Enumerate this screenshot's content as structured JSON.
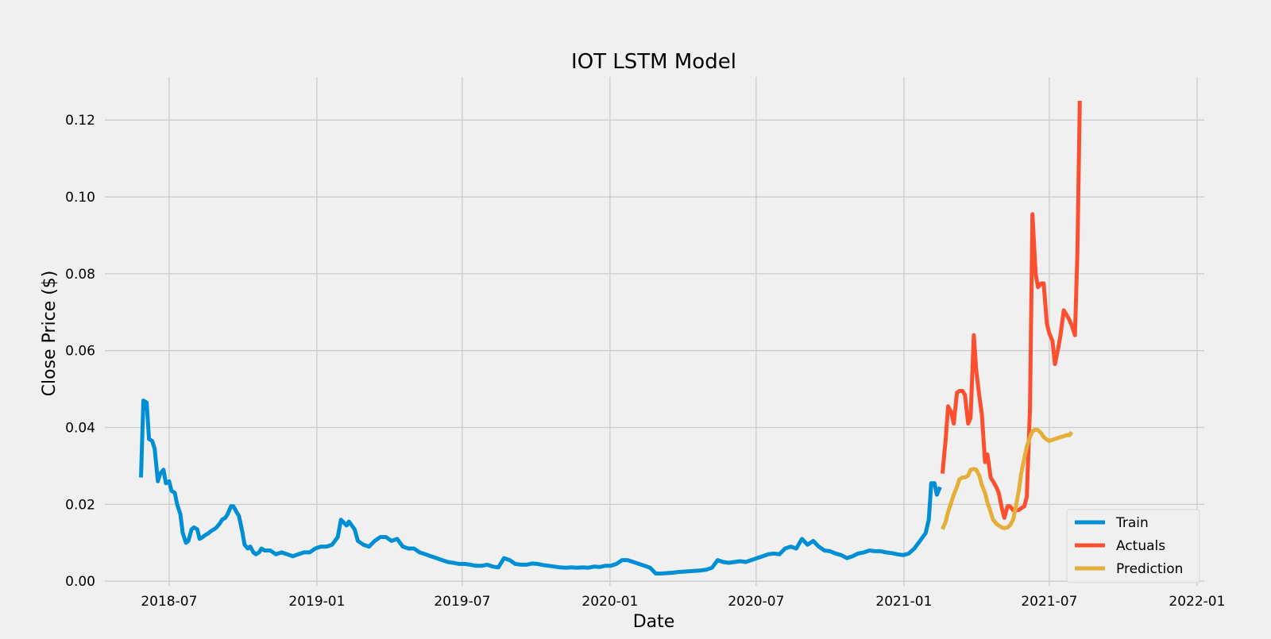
{
  "chart_data": {
    "type": "line",
    "title": "IOT LSTM Model",
    "xlabel": "Date",
    "ylabel": "Close Price ($)",
    "xlim": [
      "2018-04-12",
      "2022-01-10"
    ],
    "ylim": [
      -0.0012,
      0.1312
    ],
    "x_ticks": [
      "2018-07-01",
      "2019-01-01",
      "2019-07-01",
      "2020-01-01",
      "2020-07-01",
      "2021-01-01",
      "2021-07-01",
      "2022-01-01"
    ],
    "x_tick_labels": [
      "2018-07",
      "2019-01",
      "2019-07",
      "2020-01",
      "2020-07",
      "2021-01",
      "2021-07",
      "2022-01"
    ],
    "y_ticks": [
      0.0,
      0.02,
      0.04,
      0.06,
      0.08,
      0.1,
      0.12
    ],
    "y_tick_labels": [
      "0.00",
      "0.02",
      "0.04",
      "0.06",
      "0.08",
      "0.10",
      "0.12"
    ],
    "grid": true,
    "legend_position": "bottom-right",
    "series": [
      {
        "name": "Train",
        "color": "#008fd5",
        "points": [
          [
            "2018-05-27",
            0.027
          ],
          [
            "2018-05-30",
            0.047
          ],
          [
            "2018-06-03",
            0.0465
          ],
          [
            "2018-06-06",
            0.037
          ],
          [
            "2018-06-10",
            0.0365
          ],
          [
            "2018-06-13",
            0.0345
          ],
          [
            "2018-06-17",
            0.026
          ],
          [
            "2018-06-20",
            0.028
          ],
          [
            "2018-06-24",
            0.029
          ],
          [
            "2018-06-27",
            0.0255
          ],
          [
            "2018-07-01",
            0.026
          ],
          [
            "2018-07-04",
            0.0235
          ],
          [
            "2018-07-08",
            0.023
          ],
          [
            "2018-07-11",
            0.02
          ],
          [
            "2018-07-15",
            0.0175
          ],
          [
            "2018-07-18",
            0.0125
          ],
          [
            "2018-07-22",
            0.01
          ],
          [
            "2018-07-25",
            0.0105
          ],
          [
            "2018-07-29",
            0.0135
          ],
          [
            "2018-08-01",
            0.014
          ],
          [
            "2018-08-05",
            0.0135
          ],
          [
            "2018-08-08",
            0.011
          ],
          [
            "2018-08-12",
            0.0115
          ],
          [
            "2018-08-15",
            0.012
          ],
          [
            "2018-08-19",
            0.0125
          ],
          [
            "2018-08-22",
            0.013
          ],
          [
            "2018-08-26",
            0.0135
          ],
          [
            "2018-08-29",
            0.014
          ],
          [
            "2018-09-02",
            0.015
          ],
          [
            "2018-09-05",
            0.016
          ],
          [
            "2018-09-09",
            0.0165
          ],
          [
            "2018-09-12",
            0.0175
          ],
          [
            "2018-09-16",
            0.0195
          ],
          [
            "2018-09-19",
            0.0195
          ],
          [
            "2018-09-23",
            0.018
          ],
          [
            "2018-09-26",
            0.017
          ],
          [
            "2018-09-30",
            0.013
          ],
          [
            "2018-10-03",
            0.0095
          ],
          [
            "2018-10-07",
            0.0085
          ],
          [
            "2018-10-10",
            0.009
          ],
          [
            "2018-10-14",
            0.0075
          ],
          [
            "2018-10-17",
            0.007
          ],
          [
            "2018-10-21",
            0.0075
          ],
          [
            "2018-10-24",
            0.0085
          ],
          [
            "2018-10-28",
            0.008
          ],
          [
            "2018-11-04",
            0.008
          ],
          [
            "2018-11-11",
            0.007
          ],
          [
            "2018-11-18",
            0.0075
          ],
          [
            "2018-11-25",
            0.007
          ],
          [
            "2018-12-02",
            0.0065
          ],
          [
            "2018-12-09",
            0.007
          ],
          [
            "2018-12-16",
            0.0075
          ],
          [
            "2018-12-23",
            0.0075
          ],
          [
            "2018-12-30",
            0.0085
          ],
          [
            "2019-01-06",
            0.009
          ],
          [
            "2019-01-13",
            0.009
          ],
          [
            "2019-01-20",
            0.0095
          ],
          [
            "2019-01-27",
            0.0115
          ],
          [
            "2019-01-31",
            0.016
          ],
          [
            "2019-02-07",
            0.0145
          ],
          [
            "2019-02-10",
            0.0155
          ],
          [
            "2019-02-17",
            0.0135
          ],
          [
            "2019-02-21",
            0.0105
          ],
          [
            "2019-02-28",
            0.0095
          ],
          [
            "2019-03-07",
            0.009
          ],
          [
            "2019-03-14",
            0.0105
          ],
          [
            "2019-03-21",
            0.0115
          ],
          [
            "2019-03-28",
            0.0115
          ],
          [
            "2019-04-04",
            0.0105
          ],
          [
            "2019-04-11",
            0.011
          ],
          [
            "2019-04-18",
            0.009
          ],
          [
            "2019-04-25",
            0.0085
          ],
          [
            "2019-05-02",
            0.0085
          ],
          [
            "2019-05-09",
            0.0075
          ],
          [
            "2019-05-16",
            0.007
          ],
          [
            "2019-05-23",
            0.0065
          ],
          [
            "2019-05-30",
            0.006
          ],
          [
            "2019-06-06",
            0.0055
          ],
          [
            "2019-06-13",
            0.005
          ],
          [
            "2019-06-20",
            0.0048
          ],
          [
            "2019-06-27",
            0.0045
          ],
          [
            "2019-07-04",
            0.0045
          ],
          [
            "2019-07-11",
            0.0043
          ],
          [
            "2019-07-18",
            0.004
          ],
          [
            "2019-07-25",
            0.004
          ],
          [
            "2019-08-01",
            0.0043
          ],
          [
            "2019-08-08",
            0.0038
          ],
          [
            "2019-08-15",
            0.0036
          ],
          [
            "2019-08-22",
            0.006
          ],
          [
            "2019-08-29",
            0.0055
          ],
          [
            "2019-09-05",
            0.0045
          ],
          [
            "2019-09-12",
            0.0043
          ],
          [
            "2019-09-19",
            0.0043
          ],
          [
            "2019-09-26",
            0.0046
          ],
          [
            "2019-10-03",
            0.0045
          ],
          [
            "2019-10-10",
            0.0042
          ],
          [
            "2019-10-17",
            0.004
          ],
          [
            "2019-10-24",
            0.0038
          ],
          [
            "2019-10-31",
            0.0036
          ],
          [
            "2019-11-07",
            0.0035
          ],
          [
            "2019-11-14",
            0.0036
          ],
          [
            "2019-11-21",
            0.0035
          ],
          [
            "2019-11-28",
            0.0036
          ],
          [
            "2019-12-05",
            0.0035
          ],
          [
            "2019-12-12",
            0.0038
          ],
          [
            "2019-12-19",
            0.0037
          ],
          [
            "2019-12-26",
            0.004
          ],
          [
            "2020-01-02",
            0.004
          ],
          [
            "2020-01-09",
            0.0045
          ],
          [
            "2020-01-16",
            0.0055
          ],
          [
            "2020-01-23",
            0.0055
          ],
          [
            "2020-01-30",
            0.005
          ],
          [
            "2020-02-06",
            0.0045
          ],
          [
            "2020-02-13",
            0.004
          ],
          [
            "2020-02-20",
            0.0035
          ],
          [
            "2020-02-27",
            0.002
          ],
          [
            "2020-03-05",
            0.002
          ],
          [
            "2020-03-12",
            0.0021
          ],
          [
            "2020-03-19",
            0.0022
          ],
          [
            "2020-03-26",
            0.0024
          ],
          [
            "2020-04-02",
            0.0025
          ],
          [
            "2020-04-09",
            0.0026
          ],
          [
            "2020-04-16",
            0.0027
          ],
          [
            "2020-04-23",
            0.0028
          ],
          [
            "2020-04-30",
            0.003
          ],
          [
            "2020-05-07",
            0.0035
          ],
          [
            "2020-05-14",
            0.0055
          ],
          [
            "2020-05-21",
            0.005
          ],
          [
            "2020-05-28",
            0.0048
          ],
          [
            "2020-06-04",
            0.005
          ],
          [
            "2020-06-11",
            0.0052
          ],
          [
            "2020-06-18",
            0.005
          ],
          [
            "2020-06-25",
            0.0055
          ],
          [
            "2020-07-02",
            0.006
          ],
          [
            "2020-07-09",
            0.0065
          ],
          [
            "2020-07-16",
            0.007
          ],
          [
            "2020-07-23",
            0.0072
          ],
          [
            "2020-07-30",
            0.007
          ],
          [
            "2020-08-06",
            0.0085
          ],
          [
            "2020-08-13",
            0.009
          ],
          [
            "2020-08-20",
            0.0085
          ],
          [
            "2020-08-27",
            0.011
          ],
          [
            "2020-09-03",
            0.0095
          ],
          [
            "2020-09-10",
            0.0105
          ],
          [
            "2020-09-17",
            0.009
          ],
          [
            "2020-09-24",
            0.008
          ],
          [
            "2020-10-01",
            0.0078
          ],
          [
            "2020-10-08",
            0.0072
          ],
          [
            "2020-10-15",
            0.0068
          ],
          [
            "2020-10-22",
            0.006
          ],
          [
            "2020-10-29",
            0.0065
          ],
          [
            "2020-11-05",
            0.0072
          ],
          [
            "2020-11-12",
            0.0075
          ],
          [
            "2020-11-19",
            0.008
          ],
          [
            "2020-11-26",
            0.0078
          ],
          [
            "2020-12-03",
            0.0078
          ],
          [
            "2020-12-10",
            0.0075
          ],
          [
            "2020-12-17",
            0.0073
          ],
          [
            "2020-12-24",
            0.007
          ],
          [
            "2020-12-31",
            0.0068
          ],
          [
            "2021-01-07",
            0.0072
          ],
          [
            "2021-01-14",
            0.0085
          ],
          [
            "2021-01-21",
            0.0105
          ],
          [
            "2021-01-28",
            0.0125
          ],
          [
            "2021-02-01",
            0.016
          ],
          [
            "2021-02-04",
            0.0255
          ],
          [
            "2021-02-08",
            0.0255
          ],
          [
            "2021-02-11",
            0.0225
          ],
          [
            "2021-02-15",
            0.0245
          ]
        ]
      },
      {
        "name": "Actuals",
        "color": "#fc4f30",
        "points": [
          [
            "2021-02-18",
            0.028
          ],
          [
            "2021-02-22",
            0.037
          ],
          [
            "2021-02-25",
            0.0455
          ],
          [
            "2021-03-01",
            0.044
          ],
          [
            "2021-03-04",
            0.041
          ],
          [
            "2021-03-08",
            0.049
          ],
          [
            "2021-03-11",
            0.0495
          ],
          [
            "2021-03-15",
            0.0495
          ],
          [
            "2021-03-18",
            0.0485
          ],
          [
            "2021-03-22",
            0.041
          ],
          [
            "2021-03-25",
            0.0425
          ],
          [
            "2021-03-29",
            0.064
          ],
          [
            "2021-04-01",
            0.055
          ],
          [
            "2021-04-05",
            0.048
          ],
          [
            "2021-04-08",
            0.0435
          ],
          [
            "2021-04-12",
            0.031
          ],
          [
            "2021-04-15",
            0.033
          ],
          [
            "2021-04-19",
            0.027
          ],
          [
            "2021-04-22",
            0.026
          ],
          [
            "2021-04-26",
            0.0245
          ],
          [
            "2021-04-29",
            0.023
          ],
          [
            "2021-05-03",
            0.019
          ],
          [
            "2021-05-06",
            0.0165
          ],
          [
            "2021-05-10",
            0.0195
          ],
          [
            "2021-05-13",
            0.0195
          ],
          [
            "2021-05-17",
            0.0185
          ],
          [
            "2021-05-20",
            0.0185
          ],
          [
            "2021-05-24",
            0.0185
          ],
          [
            "2021-05-27",
            0.019
          ],
          [
            "2021-05-31",
            0.0195
          ],
          [
            "2021-06-03",
            0.022
          ],
          [
            "2021-06-07",
            0.045
          ],
          [
            "2021-06-10",
            0.0955
          ],
          [
            "2021-06-14",
            0.08
          ],
          [
            "2021-06-17",
            0.0765
          ],
          [
            "2021-06-21",
            0.0775
          ],
          [
            "2021-06-24",
            0.0775
          ],
          [
            "2021-06-28",
            0.067
          ],
          [
            "2021-07-01",
            0.0645
          ],
          [
            "2021-07-05",
            0.0625
          ],
          [
            "2021-07-08",
            0.0565
          ],
          [
            "2021-07-12",
            0.0605
          ],
          [
            "2021-07-15",
            0.064
          ],
          [
            "2021-07-19",
            0.0705
          ],
          [
            "2021-07-22",
            0.0695
          ],
          [
            "2021-07-26",
            0.068
          ],
          [
            "2021-07-29",
            0.0665
          ],
          [
            "2021-08-02",
            0.064
          ],
          [
            "2021-08-05",
            0.0855
          ],
          [
            "2021-08-08",
            0.125
          ]
        ]
      },
      {
        "name": "Prediction",
        "color": "#e5ae38",
        "points": [
          [
            "2021-02-18",
            0.0135
          ],
          [
            "2021-02-22",
            0.0155
          ],
          [
            "2021-02-25",
            0.018
          ],
          [
            "2021-03-01",
            0.0205
          ],
          [
            "2021-03-04",
            0.0225
          ],
          [
            "2021-03-08",
            0.0245
          ],
          [
            "2021-03-11",
            0.0265
          ],
          [
            "2021-03-15",
            0.027
          ],
          [
            "2021-03-18",
            0.027
          ],
          [
            "2021-03-22",
            0.0275
          ],
          [
            "2021-03-25",
            0.029
          ],
          [
            "2021-03-29",
            0.0292
          ],
          [
            "2021-04-01",
            0.029
          ],
          [
            "2021-04-05",
            0.0275
          ],
          [
            "2021-04-08",
            0.025
          ],
          [
            "2021-04-12",
            0.023
          ],
          [
            "2021-04-15",
            0.0205
          ],
          [
            "2021-04-19",
            0.018
          ],
          [
            "2021-04-22",
            0.016
          ],
          [
            "2021-04-26",
            0.015
          ],
          [
            "2021-04-29",
            0.0145
          ],
          [
            "2021-05-03",
            0.014
          ],
          [
            "2021-05-06",
            0.0138
          ],
          [
            "2021-05-10",
            0.014
          ],
          [
            "2021-05-13",
            0.0145
          ],
          [
            "2021-05-17",
            0.016
          ],
          [
            "2021-05-20",
            0.019
          ],
          [
            "2021-05-24",
            0.0235
          ],
          [
            "2021-05-27",
            0.028
          ],
          [
            "2021-05-31",
            0.032
          ],
          [
            "2021-06-03",
            0.035
          ],
          [
            "2021-06-07",
            0.0375
          ],
          [
            "2021-06-10",
            0.039
          ],
          [
            "2021-06-14",
            0.0395
          ],
          [
            "2021-06-17",
            0.0393
          ],
          [
            "2021-06-21",
            0.0385
          ],
          [
            "2021-06-24",
            0.0375
          ],
          [
            "2021-06-28",
            0.0368
          ],
          [
            "2021-07-01",
            0.0365
          ],
          [
            "2021-07-05",
            0.0368
          ],
          [
            "2021-07-08",
            0.037
          ],
          [
            "2021-07-12",
            0.0373
          ],
          [
            "2021-07-15",
            0.0375
          ],
          [
            "2021-07-19",
            0.0377
          ],
          [
            "2021-07-22",
            0.038
          ],
          [
            "2021-07-26",
            0.038
          ],
          [
            "2021-07-29",
            0.0388
          ]
        ]
      }
    ]
  }
}
